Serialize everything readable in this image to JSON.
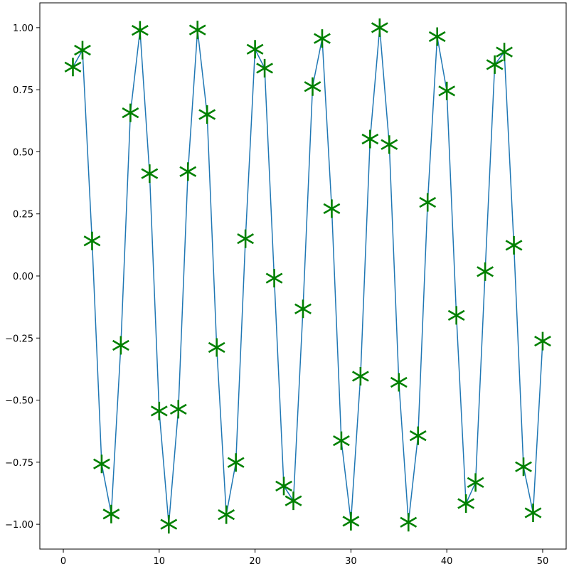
{
  "chart_data": {
    "type": "line",
    "title": "",
    "xlabel": "",
    "ylabel": "",
    "xlim": [
      -2.45,
      52.45
    ],
    "ylim": [
      -1.0999,
      1.0999
    ],
    "grid": false,
    "legend": "none",
    "x_ticks": [
      0,
      10,
      20,
      30,
      40,
      50
    ],
    "x_tick_labels": [
      "0",
      "10",
      "20",
      "30",
      "40",
      "50"
    ],
    "y_ticks": [
      -1.0,
      -0.75,
      -0.5,
      -0.25,
      0.0,
      0.25,
      0.5,
      0.75,
      1.0
    ],
    "y_tick_labels": [
      "−1.00",
      "−0.75",
      "−0.50",
      "−0.25",
      "0.00",
      "0.25",
      "0.50",
      "0.75",
      "1.00"
    ],
    "series": [
      {
        "line_color": "#1f77b4",
        "marker": "star",
        "marker_color": "#008000",
        "x": [
          1,
          2,
          3,
          4,
          5,
          6,
          7,
          8,
          9,
          10,
          11,
          12,
          13,
          14,
          15,
          16,
          17,
          18,
          19,
          20,
          21,
          22,
          23,
          24,
          25,
          26,
          27,
          28,
          29,
          30,
          31,
          32,
          33,
          34,
          35,
          36,
          37,
          38,
          39,
          40,
          41,
          42,
          43,
          44,
          45,
          46,
          47,
          48,
          49,
          50
        ],
        "y": [
          0.8415,
          0.9093,
          0.1411,
          -0.7568,
          -0.9589,
          -0.2794,
          0.657,
          0.9894,
          0.4121,
          -0.544,
          -1.0,
          -0.5366,
          0.4202,
          0.9906,
          0.6503,
          -0.2879,
          -0.9614,
          -0.751,
          0.1499,
          0.9129,
          0.8367,
          -0.0089,
          -0.8462,
          -0.9056,
          -0.1324,
          0.7626,
          0.9564,
          0.2709,
          -0.6636,
          -0.988,
          -0.404,
          0.5514,
          0.9999,
          0.5291,
          -0.4282,
          -0.9918,
          -0.6435,
          0.2964,
          0.9638,
          0.7451,
          -0.1586,
          -0.9166,
          -0.8318,
          0.0177,
          0.8509,
          0.9018,
          0.1236,
          -0.7683,
          -0.9538,
          -0.2624
        ]
      }
    ]
  }
}
